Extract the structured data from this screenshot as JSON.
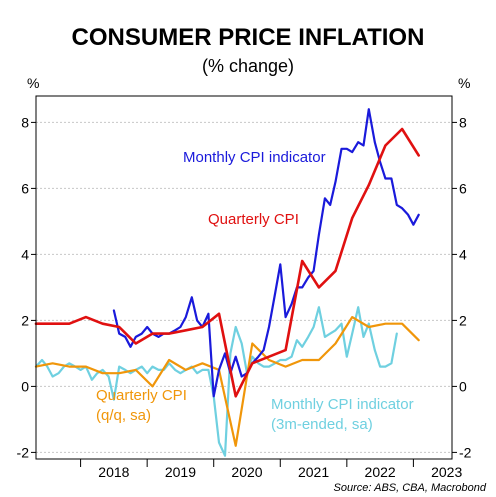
{
  "chart_data": {
    "type": "line",
    "title": "CONSUMER PRICE INFLATION",
    "subtitle": "(% change)",
    "y_unit_left": "%",
    "y_unit_right": "%",
    "ylim": [
      -2.2,
      8.8
    ],
    "y_ticks": [
      -2,
      0,
      2,
      4,
      6,
      8
    ],
    "x_tick_labels": [
      "2018",
      "2019",
      "2020",
      "2021",
      "2022",
      "2023"
    ],
    "xlim": [
      2017.33,
      2023.58
    ],
    "grid": true,
    "source": "Source: ABS, CBA, Macrobond",
    "series": [
      {
        "name": "Monthly CPI indicator",
        "color": "#1a1adb",
        "x": [
          2018.5,
          2018.58,
          2018.67,
          2018.75,
          2018.83,
          2018.92,
          2019.0,
          2019.08,
          2019.17,
          2019.25,
          2019.33,
          2019.42,
          2019.5,
          2019.58,
          2019.67,
          2019.75,
          2019.83,
          2019.92,
          2020.0,
          2020.08,
          2020.17,
          2020.25,
          2020.33,
          2020.42,
          2020.5,
          2020.58,
          2020.67,
          2020.75,
          2020.83,
          2020.92,
          2021.0,
          2021.08,
          2021.17,
          2021.25,
          2021.33,
          2021.42,
          2021.5,
          2021.58,
          2021.67,
          2021.75,
          2021.83,
          2021.92,
          2022.0,
          2022.08,
          2022.17,
          2022.25,
          2022.33,
          2022.42,
          2022.5,
          2022.58,
          2022.67,
          2022.75,
          2022.83,
          2022.92,
          2023.0,
          2023.08,
          2023.17,
          2023.25
        ],
        "y": [
          2.3,
          1.6,
          1.5,
          1.2,
          1.5,
          1.6,
          1.8,
          1.6,
          1.5,
          1.6,
          1.6,
          1.7,
          1.8,
          2.1,
          2.7,
          2.0,
          1.8,
          2.2,
          -0.3,
          0.5,
          1.0,
          0.4,
          0.9,
          0.3,
          0.4,
          0.7,
          0.9,
          1.1,
          1.8,
          2.8,
          3.7,
          2.1,
          2.5,
          3.0,
          3.0,
          3.3,
          3.5,
          4.6,
          5.7,
          5.5,
          6.2,
          7.2,
          7.2,
          7.1,
          7.4,
          7.3,
          8.4,
          7.4,
          6.8,
          6.3,
          6.3,
          5.5,
          5.4,
          5.2,
          4.9,
          5.2,
          null,
          null
        ]
      },
      {
        "name": "Quarterly CPI",
        "color": "#e01010",
        "x": [
          2017.33,
          2017.58,
          2017.83,
          2018.08,
          2018.33,
          2018.58,
          2018.83,
          2019.08,
          2019.33,
          2019.58,
          2019.83,
          2020.08,
          2020.33,
          2020.58,
          2020.83,
          2021.08,
          2021.33,
          2021.58,
          2021.83,
          2022.08,
          2022.33,
          2022.58,
          2022.83,
          2023.08
        ],
        "y": [
          1.9,
          1.9,
          1.9,
          2.1,
          1.9,
          1.8,
          1.3,
          1.6,
          1.6,
          1.7,
          1.8,
          2.2,
          -0.3,
          0.7,
          0.9,
          1.1,
          3.8,
          3.0,
          3.5,
          5.1,
          6.1,
          7.3,
          7.8,
          7.0
        ]
      },
      {
        "name": "Quarterly CPI",
        "label_line2": "(q/q, sa)",
        "color": "#f0960a",
        "x": [
          2017.33,
          2017.58,
          2017.83,
          2018.08,
          2018.33,
          2018.58,
          2018.83,
          2019.08,
          2019.33,
          2019.58,
          2019.83,
          2020.08,
          2020.33,
          2020.58,
          2020.83,
          2021.08,
          2021.33,
          2021.58,
          2021.83,
          2022.08,
          2022.33,
          2022.58,
          2022.83,
          2023.08
        ],
        "y": [
          0.6,
          0.7,
          0.6,
          0.6,
          0.4,
          0.4,
          0.5,
          0.0,
          0.8,
          0.5,
          0.7,
          0.5,
          -1.8,
          1.3,
          0.8,
          0.6,
          0.8,
          0.8,
          1.3,
          2.1,
          1.8,
          1.9,
          1.9,
          1.4
        ]
      },
      {
        "name": "Monthly CPI indicator",
        "label_line2": "(3m-ended, sa)",
        "color": "#6fd0e0",
        "x": [
          2017.33,
          2017.42,
          2017.5,
          2017.58,
          2017.67,
          2017.75,
          2017.83,
          2017.92,
          2018.0,
          2018.08,
          2018.17,
          2018.25,
          2018.33,
          2018.42,
          2018.5,
          2018.58,
          2018.67,
          2018.75,
          2018.83,
          2018.92,
          2019.0,
          2019.08,
          2019.17,
          2019.25,
          2019.33,
          2019.42,
          2019.5,
          2019.58,
          2019.67,
          2019.75,
          2019.83,
          2019.92,
          2020.0,
          2020.08,
          2020.17,
          2020.25,
          2020.33,
          2020.42,
          2020.5,
          2020.58,
          2020.67,
          2020.75,
          2020.83,
          2020.92,
          2021.0,
          2021.08,
          2021.17,
          2021.25,
          2021.33,
          2021.42,
          2021.5,
          2021.58,
          2021.67,
          2021.75,
          2021.83,
          2021.92,
          2022.0,
          2022.08,
          2022.17,
          2022.25,
          2022.33,
          2022.42,
          2022.5,
          2022.58,
          2022.67,
          2022.75,
          2022.83,
          2022.92,
          2023.0,
          2023.08,
          2023.17,
          2023.25
        ],
        "y": [
          0.6,
          0.8,
          0.6,
          0.3,
          0.4,
          0.6,
          0.7,
          0.6,
          0.5,
          0.6,
          0.2,
          0.4,
          0.5,
          0.3,
          -0.4,
          0.6,
          0.5,
          0.4,
          0.5,
          0.6,
          0.4,
          0.6,
          0.5,
          0.5,
          0.7,
          0.5,
          0.4,
          0.5,
          0.6,
          0.4,
          0.5,
          0.5,
          -0.3,
          -1.7,
          -2.1,
          1.0,
          1.8,
          1.3,
          0.4,
          0.9,
          0.7,
          0.6,
          0.6,
          0.7,
          0.8,
          0.8,
          0.9,
          1.4,
          1.2,
          1.5,
          1.8,
          2.4,
          1.5,
          1.6,
          1.7,
          1.9,
          0.9,
          1.6,
          2.4,
          1.5,
          1.9,
          1.1,
          0.6,
          0.6,
          0.7,
          1.6,
          null,
          null,
          null,
          null,
          null,
          null
        ]
      }
    ]
  }
}
